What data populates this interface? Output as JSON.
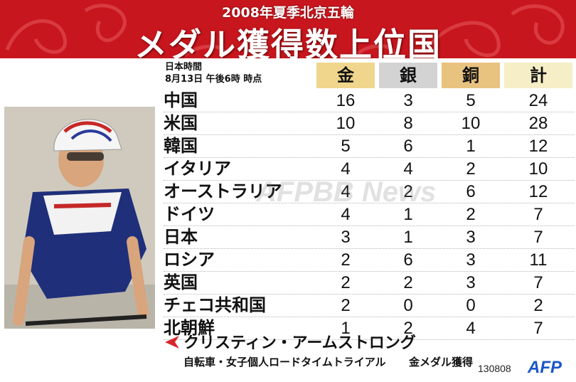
{
  "header": {
    "subtitle": "2008年夏季北京五輪",
    "title": "メダル獲得数上位国"
  },
  "time_note": {
    "line1": "日本時間",
    "line2": "8月13日 午後6時 時点"
  },
  "columns": {
    "gold": "金",
    "silver": "銀",
    "bronze": "銅",
    "total": "計"
  },
  "colors": {
    "header_red": "#c8161e",
    "gold_col": "#f0d58c",
    "silver_col": "#d3d3d3",
    "bronze_col": "#e8c27f",
    "total_col": "#f6eec6",
    "afp_blue": "#1a57c7"
  },
  "rows": [
    {
      "country": "中国",
      "gold": "16",
      "silver": "3",
      "bronze": "5",
      "total": "24"
    },
    {
      "country": "米国",
      "gold": "10",
      "silver": "8",
      "bronze": "10",
      "total": "28"
    },
    {
      "country": "韓国",
      "gold": "5",
      "silver": "6",
      "bronze": "1",
      "total": "12"
    },
    {
      "country": "イタリア",
      "gold": "4",
      "silver": "4",
      "bronze": "2",
      "total": "10"
    },
    {
      "country": "オーストラリア",
      "gold": "4",
      "silver": "2",
      "bronze": "6",
      "total": "12"
    },
    {
      "country": "ドイツ",
      "gold": "4",
      "silver": "1",
      "bronze": "2",
      "total": "7"
    },
    {
      "country": "日本",
      "gold": "3",
      "silver": "1",
      "bronze": "3",
      "total": "7"
    },
    {
      "country": "ロシア",
      "gold": "2",
      "silver": "6",
      "bronze": "3",
      "total": "11"
    },
    {
      "country": "英国",
      "gold": "2",
      "silver": "2",
      "bronze": "3",
      "total": "7"
    },
    {
      "country": "チェコ共和国",
      "gold": "2",
      "silver": "0",
      "bronze": "0",
      "total": "2"
    },
    {
      "country": "北朝鮮",
      "gold": "1",
      "silver": "2",
      "bronze": "4",
      "total": "7"
    }
  ],
  "watermark": "AFPBB News",
  "caption": {
    "athlete": "クリスティン・アームストロング",
    "event": "自転車・女子個人ロードタイムトライアル",
    "medal": "金メダル獲得"
  },
  "footer": {
    "code": "130808",
    "logo": "AFP"
  },
  "photo_icon": "cyclist-photo"
}
